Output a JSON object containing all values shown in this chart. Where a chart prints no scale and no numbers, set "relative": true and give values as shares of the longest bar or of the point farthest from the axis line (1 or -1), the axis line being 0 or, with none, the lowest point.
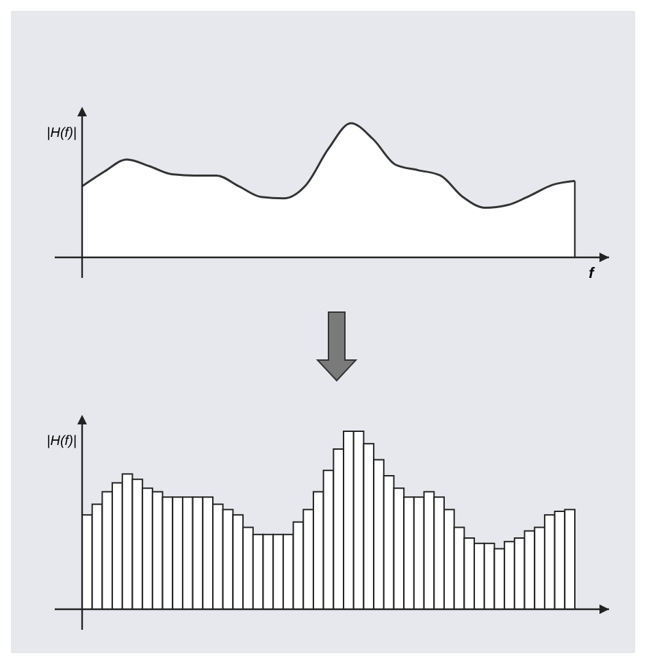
{
  "chart_data": [
    {
      "type": "area",
      "relative": true,
      "ylabel": "|H(f)|",
      "xlabel": "f",
      "color": "#ffffff",
      "categories": [
        null,
        null,
        null,
        null,
        null,
        null,
        null,
        null,
        null,
        null,
        null,
        null,
        null,
        null,
        null,
        null,
        null,
        null,
        null,
        null,
        null,
        null,
        null
      ],
      "values": [
        0.53,
        0.64,
        0.73,
        0.68,
        0.62,
        0.61,
        0.61,
        0.53,
        0.45,
        0.44,
        0.54,
        0.81,
        1,
        0.88,
        0.69,
        0.65,
        0.61,
        0.45,
        0.37,
        0.39,
        0.46,
        0.54,
        0.57
      ]
    },
    {
      "type": "bar",
      "relative": true,
      "ylabel": "|H(f)|",
      "color": "#ffffff",
      "categories": [
        null,
        null,
        null,
        null,
        null,
        null,
        null,
        null,
        null,
        null,
        null,
        null,
        null,
        null,
        null,
        null,
        null,
        null,
        null,
        null,
        null,
        null,
        null,
        null,
        null,
        null,
        null,
        null,
        null,
        null,
        null,
        null,
        null,
        null,
        null,
        null,
        null,
        null,
        null,
        null,
        null,
        null,
        null,
        null,
        null,
        null,
        null,
        null,
        null
      ],
      "values": [
        0.53,
        0.59,
        0.66,
        0.71,
        0.76,
        0.73,
        0.68,
        0.66,
        0.63,
        0.63,
        0.63,
        0.63,
        0.63,
        0.59,
        0.56,
        0.53,
        0.46,
        0.42,
        0.42,
        0.42,
        0.42,
        0.49,
        0.56,
        0.66,
        0.78,
        0.9,
        1,
        1,
        0.93,
        0.84,
        0.75,
        0.68,
        0.63,
        0.63,
        0.66,
        0.63,
        0.56,
        0.46,
        0.4,
        0.37,
        0.37,
        0.34,
        0.38,
        0.4,
        0.44,
        0.46,
        0.53,
        0.55,
        0.56
      ]
    }
  ]
}
